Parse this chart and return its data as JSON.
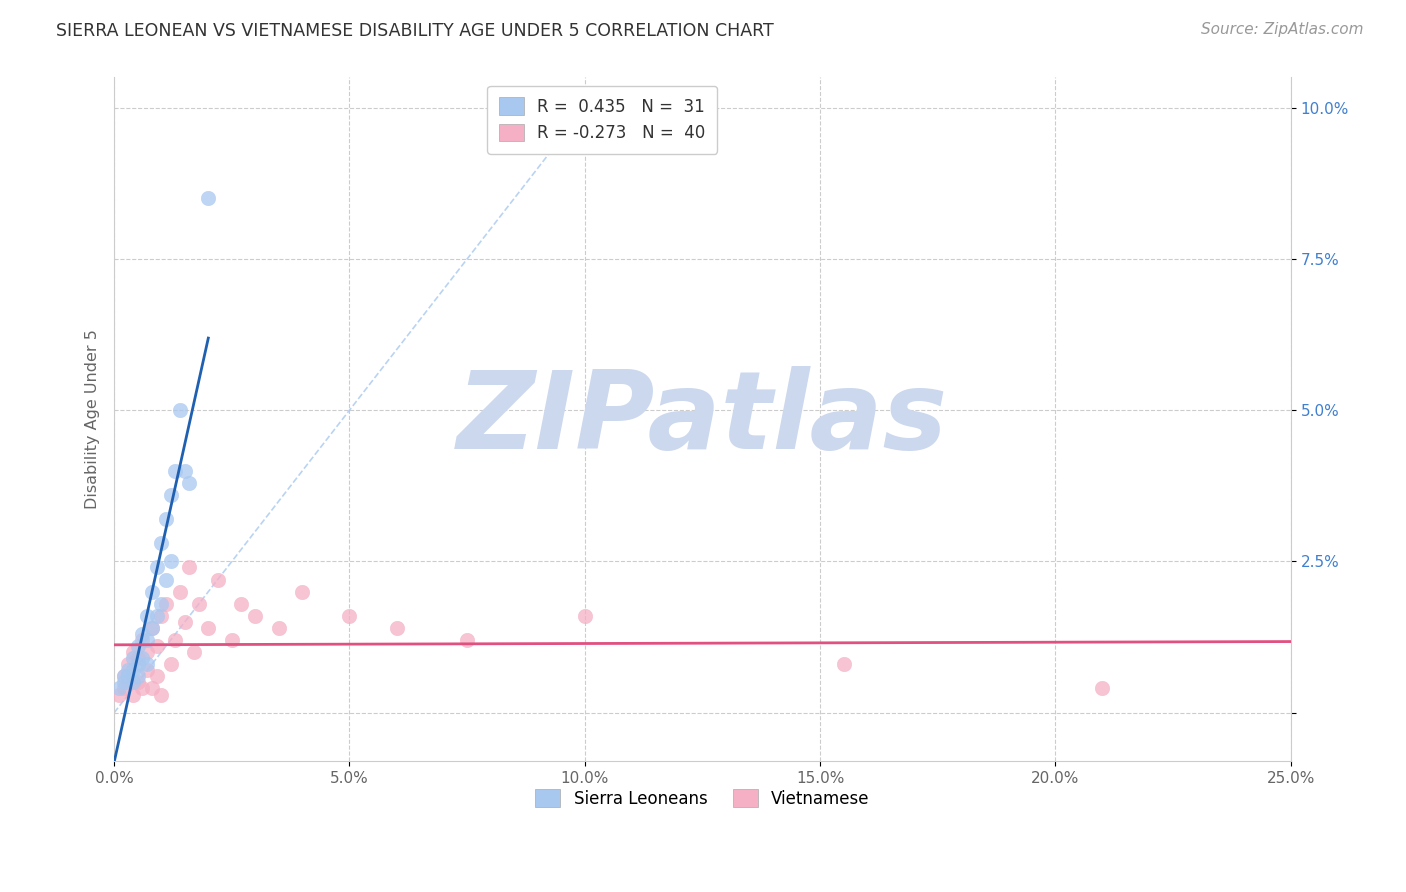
{
  "title": "SIERRA LEONEAN VS VIETNAMESE DISABILITY AGE UNDER 5 CORRELATION CHART",
  "source": "Source: ZipAtlas.com",
  "ylabel": "Disability Age Under 5",
  "xlim": [
    0.0,
    0.25
  ],
  "ylim": [
    -0.008,
    0.105
  ],
  "sierra_R": 0.435,
  "sierra_N": 31,
  "viet_R": -0.273,
  "viet_N": 40,
  "sierra_color": "#a8c8f0",
  "viet_color": "#f5b0c5",
  "sierra_line_color": "#2060b0",
  "viet_line_color": "#e05080",
  "watermark_text": "ZIPatlas",
  "watermark_color": "#ccd8ee",
  "sierra_x": [
    0.001,
    0.002,
    0.002,
    0.003,
    0.003,
    0.004,
    0.004,
    0.004,
    0.005,
    0.005,
    0.005,
    0.006,
    0.006,
    0.007,
    0.007,
    0.007,
    0.008,
    0.008,
    0.009,
    0.009,
    0.01,
    0.01,
    0.011,
    0.011,
    0.012,
    0.012,
    0.013,
    0.014,
    0.015,
    0.016,
    0.02
  ],
  "sierra_y": [
    0.004,
    0.006,
    0.005,
    0.007,
    0.006,
    0.009,
    0.007,
    0.005,
    0.011,
    0.008,
    0.006,
    0.013,
    0.009,
    0.016,
    0.012,
    0.008,
    0.02,
    0.014,
    0.024,
    0.016,
    0.028,
    0.018,
    0.032,
    0.022,
    0.036,
    0.025,
    0.04,
    0.05,
    0.04,
    0.038,
    0.085
  ],
  "viet_x": [
    0.001,
    0.002,
    0.002,
    0.003,
    0.003,
    0.004,
    0.004,
    0.005,
    0.005,
    0.006,
    0.006,
    0.007,
    0.007,
    0.008,
    0.008,
    0.009,
    0.009,
    0.01,
    0.01,
    0.011,
    0.012,
    0.013,
    0.014,
    0.015,
    0.016,
    0.017,
    0.018,
    0.02,
    0.022,
    0.025,
    0.027,
    0.03,
    0.035,
    0.04,
    0.05,
    0.06,
    0.075,
    0.1,
    0.155,
    0.21
  ],
  "viet_y": [
    0.003,
    0.006,
    0.004,
    0.008,
    0.005,
    0.01,
    0.003,
    0.009,
    0.005,
    0.012,
    0.004,
    0.01,
    0.007,
    0.014,
    0.004,
    0.011,
    0.006,
    0.016,
    0.003,
    0.018,
    0.008,
    0.012,
    0.02,
    0.015,
    0.024,
    0.01,
    0.018,
    0.014,
    0.022,
    0.012,
    0.018,
    0.016,
    0.014,
    0.02,
    0.016,
    0.014,
    0.012,
    0.016,
    0.008,
    0.004
  ],
  "x_ticks": [
    0.0,
    0.05,
    0.1,
    0.15,
    0.2,
    0.25
  ],
  "y_ticks": [
    0.0,
    0.025,
    0.05,
    0.075,
    0.1
  ]
}
